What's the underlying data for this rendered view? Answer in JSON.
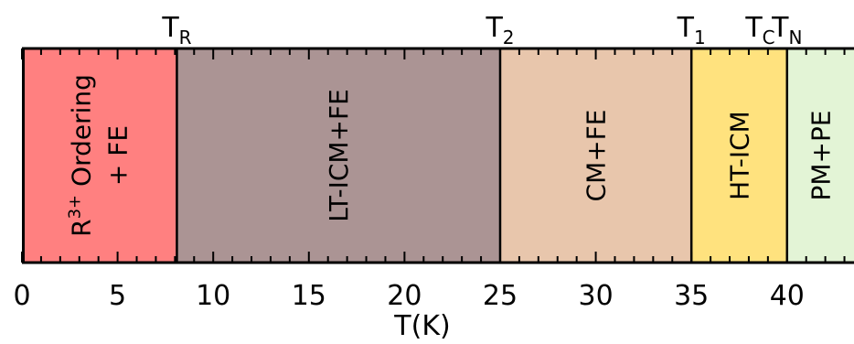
{
  "chart_data": {
    "type": "phase-diagram",
    "xlabel": "T(K)",
    "xlim": [
      0,
      43.5
    ],
    "x_ticks_major": [
      0,
      5,
      10,
      15,
      20,
      25,
      30,
      35,
      40
    ],
    "x_tick_labels": [
      "0",
      "5",
      "10",
      "15",
      "20",
      "25",
      "30",
      "35",
      "40"
    ],
    "x_ticks_minor_step": 1,
    "regions": [
      {
        "from": 0,
        "to": 8.1,
        "color": "#ff8080",
        "lines": [
          {
            "main": "R",
            "sup": "3+",
            "rest": " Ordering"
          },
          {
            "main": "+ FE"
          }
        ]
      },
      {
        "from": 8.1,
        "to": 25,
        "color": "#ab9494",
        "lines": [
          {
            "main": "LT-ICM+FE"
          }
        ]
      },
      {
        "from": 25,
        "to": 35,
        "color": "#e8c6ac",
        "lines": [
          {
            "main": "CM+FE"
          }
        ]
      },
      {
        "from": 35,
        "to": 40,
        "color": "#ffe27e",
        "lines": [
          {
            "main": "HT-ICM"
          }
        ]
      },
      {
        "from": 40,
        "to": 43.5,
        "color": "#e3f4d6",
        "lines": [
          {
            "main": "PM+PE"
          }
        ]
      }
    ],
    "transitions": [
      {
        "T": 8.1,
        "symbol": "T",
        "sub": "R"
      },
      {
        "T": 25,
        "symbol": "T",
        "sub": "2"
      },
      {
        "T": 35,
        "symbol": "T",
        "sub": "1"
      },
      {
        "T": 38.6,
        "symbol": "T",
        "sub": "C"
      },
      {
        "T": 40,
        "symbol": "T",
        "sub": "N"
      }
    ]
  }
}
